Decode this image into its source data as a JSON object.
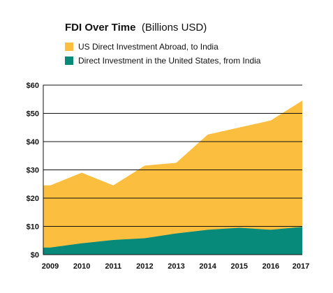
{
  "colors": {
    "us_abroad": "#fbbe3f",
    "india_in_us": "#078a79",
    "grid": "#111111",
    "text": "#111111"
  },
  "chart_data": {
    "type": "area",
    "title": "FDI Over Time",
    "subtitle": "(Billions USD)",
    "x": [
      "2009",
      "2010",
      "2011",
      "2012",
      "2013",
      "2014",
      "2015",
      "2016",
      "2017"
    ],
    "series": [
      {
        "name": "US Direct Investment Abroad, to India",
        "values": [
          24.5,
          29,
          24.5,
          31.5,
          32.5,
          42.5,
          45,
          47.5,
          54.5
        ]
      },
      {
        "name": "Direct Investment in the United States, from India",
        "values": [
          2.5,
          4,
          5.2,
          5.8,
          7.5,
          8.8,
          9.5,
          8.8,
          9.8
        ]
      }
    ],
    "stacked": false,
    "ylim": [
      0,
      60
    ],
    "yticks": [
      0,
      10,
      20,
      30,
      40,
      50,
      60
    ],
    "ytick_labels": [
      "$0",
      "$10",
      "$20",
      "$30",
      "$40",
      "$50",
      "$60"
    ],
    "xlabel": "",
    "ylabel": "",
    "grid": true,
    "legend_position": "top-left"
  }
}
